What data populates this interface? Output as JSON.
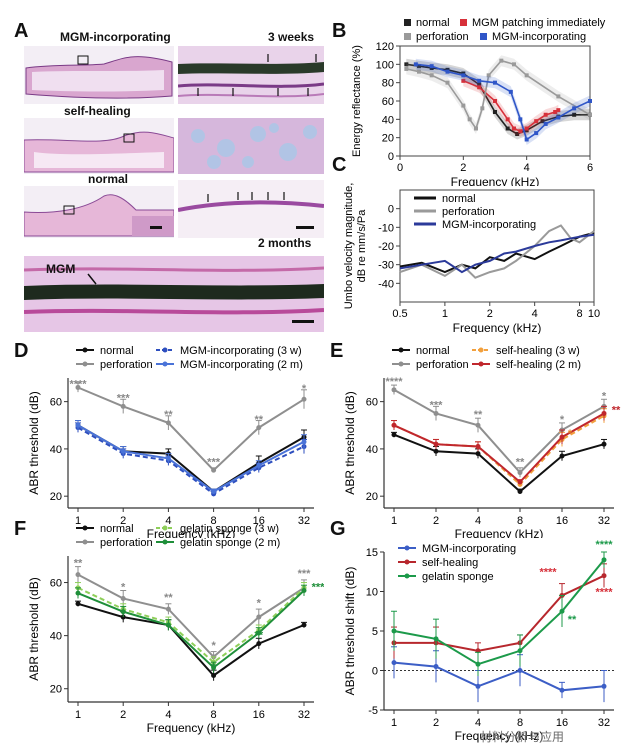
{
  "panels": {
    "A": {
      "letter": "A",
      "labels": {
        "mgm_incorporating": "MGM-incorporating",
        "self_healing": "self-healing",
        "normal": "normal",
        "three_weeks": "3 weeks",
        "two_months": "2 months",
        "mgm": "MGM"
      }
    },
    "B": {
      "letter": "B"
    },
    "C": {
      "letter": "C"
    },
    "D": {
      "letter": "D"
    },
    "E": {
      "letter": "E"
    },
    "F": {
      "letter": "F"
    },
    "G": {
      "letter": "G"
    }
  },
  "watermark": "材料分析与应用",
  "chart_data": [
    {
      "id": "B",
      "type": "line",
      "xlabel": "Frequency (kHz)",
      "ylabel": "Energy reflectance (%)",
      "xlim": [
        0,
        6
      ],
      "ylim": [
        0,
        120
      ],
      "xticks": [
        0,
        2,
        4,
        6
      ],
      "yticks": [
        0,
        20,
        40,
        60,
        80,
        100,
        120
      ],
      "legend": [
        "normal",
        "MGM patching immediately",
        "perforation",
        "MGM-incorporating"
      ],
      "colors": [
        "#222222",
        "#d7303a",
        "#9a9a9a",
        "#2f56c8"
      ],
      "series": [
        {
          "name": "normal",
          "x": [
            0.2,
            0.6,
            1.0,
            1.5,
            2.0,
            2.5,
            3.0,
            3.4,
            3.7,
            4.0,
            4.5,
            5.0,
            5.5,
            6.0
          ],
          "y": [
            100,
            98,
            96,
            94,
            90,
            78,
            48,
            30,
            24,
            28,
            38,
            43,
            45,
            45
          ]
        },
        {
          "name": "MGM patching immediately",
          "x": [
            2.0,
            2.5,
            3.0,
            3.4,
            3.6,
            3.8,
            4.0,
            4.3,
            4.6,
            4.9,
            5.0
          ],
          "y": [
            82,
            75,
            60,
            40,
            30,
            27,
            30,
            38,
            45,
            48,
            50
          ]
        },
        {
          "name": "perforation",
          "x": [
            0.2,
            0.6,
            1.0,
            1.5,
            2.0,
            2.2,
            2.4,
            2.6,
            2.8,
            3.2,
            3.6,
            4.0,
            5.0,
            6.0
          ],
          "y": [
            95,
            92,
            88,
            80,
            55,
            40,
            30,
            52,
            88,
            104,
            100,
            88,
            65,
            45
          ]
        },
        {
          "name": "MGM-incorporating",
          "x": [
            0.5,
            1.0,
            1.5,
            2.0,
            2.5,
            3.0,
            3.5,
            3.8,
            4.0,
            4.3,
            4.6,
            5.0,
            5.5,
            6.0
          ],
          "y": [
            100,
            98,
            92,
            88,
            82,
            80,
            70,
            40,
            18,
            25,
            35,
            42,
            52,
            60
          ]
        }
      ]
    },
    {
      "id": "C",
      "type": "line",
      "xlabel": "Frequency (kHz)",
      "ylabel": "Umbo velocity magnitude, dB re mm/s/Pa",
      "xscale": "log",
      "xlim": [
        0.5,
        10
      ],
      "ylim": [
        -50,
        10
      ],
      "xticks": [
        0.5,
        1,
        2,
        4,
        8,
        10
      ],
      "yticks": [
        -40,
        -30,
        -20,
        -10,
        0
      ],
      "legend": [
        "normal",
        "perforation",
        "MGM-incorporating"
      ],
      "colors": [
        "#111111",
        "#9a9a9a",
        "#2b3a9a"
      ],
      "series": [
        {
          "name": "normal",
          "x": [
            0.5,
            0.7,
            1.0,
            1.3,
            1.6,
            2.0,
            2.5,
            3.0,
            4.0,
            5.0,
            6.0,
            8.0,
            10.0
          ],
          "y": [
            -31,
            -29,
            -34,
            -30,
            -32,
            -26,
            -28,
            -24,
            -27,
            -23,
            -20,
            -15,
            -13
          ]
        },
        {
          "name": "perforation",
          "x": [
            0.5,
            0.7,
            1.0,
            1.3,
            1.6,
            2.0,
            2.5,
            3.0,
            4.0,
            5.0,
            6.0,
            7.0,
            8.0,
            10.0
          ],
          "y": [
            -34,
            -30,
            -36,
            -30,
            -37,
            -34,
            -32,
            -28,
            -20,
            -12,
            -9,
            -16,
            -18,
            -12
          ]
        },
        {
          "name": "MGM-incorporating",
          "x": [
            0.5,
            0.7,
            1.0,
            1.3,
            1.6,
            2.0,
            2.5,
            3.0,
            4.0,
            5.0,
            6.0,
            8.0,
            10.0
          ],
          "y": [
            -32,
            -30,
            -28,
            -34,
            -30,
            -28,
            -24,
            -23,
            -20,
            -18,
            -17,
            -15,
            -14
          ]
        }
      ]
    },
    {
      "id": "D",
      "type": "line",
      "xlabel": "Frequency (kHz)",
      "ylabel": "ABR threshold (dB)",
      "categories": [
        "1",
        "2",
        "4",
        "8",
        "16",
        "32"
      ],
      "ylim": [
        15,
        70
      ],
      "yticks": [
        20,
        40,
        60
      ],
      "series": [
        {
          "name": "normal",
          "values": [
            50,
            39,
            38,
            22,
            34,
            45
          ],
          "err": [
            2,
            2,
            2,
            1,
            3,
            3
          ],
          "color": "#111111",
          "dash": false
        },
        {
          "name": "perforation",
          "values": [
            66,
            58,
            51,
            31,
            49,
            61
          ],
          "err": [
            2,
            3,
            3,
            1,
            3,
            4
          ],
          "color": "#8f8f8f",
          "dash": false
        },
        {
          "name": "MGM-incorporating (3 w)",
          "values": [
            49,
            38,
            35,
            21,
            32,
            41
          ],
          "err": [
            2,
            2,
            2,
            1,
            2,
            3
          ],
          "color": "#2e4fbf",
          "dash": true
        },
        {
          "name": "MGM-incorporating (2 m)",
          "values": [
            50,
            39,
            36,
            22,
            33,
            43
          ],
          "err": [
            2,
            2,
            2,
            1,
            2,
            3
          ],
          "color": "#4a73d8",
          "dash": false
        }
      ],
      "annotations": [
        {
          "cat": 0,
          "y": 66,
          "text": "****",
          "color": "#888888"
        },
        {
          "cat": 1,
          "y": 60,
          "text": "***",
          "color": "#888888"
        },
        {
          "cat": 2,
          "y": 53,
          "text": "**",
          "color": "#888888"
        },
        {
          "cat": 3,
          "y": 33,
          "text": "***",
          "color": "#888888"
        },
        {
          "cat": 4,
          "y": 51,
          "text": "**",
          "color": "#888888"
        },
        {
          "cat": 5,
          "y": 64,
          "text": "*",
          "color": "#888888"
        }
      ]
    },
    {
      "id": "E",
      "type": "line",
      "xlabel": "Frequency (kHz)",
      "ylabel": "ABR threshold (dB)",
      "categories": [
        "1",
        "2",
        "4",
        "8",
        "16",
        "32"
      ],
      "ylim": [
        15,
        70
      ],
      "yticks": [
        20,
        40,
        60
      ],
      "series": [
        {
          "name": "normal",
          "values": [
            46,
            39,
            38,
            22,
            37,
            42
          ],
          "err": [
            1,
            2,
            2,
            1,
            2,
            2
          ],
          "color": "#111111",
          "dash": false
        },
        {
          "name": "perforation",
          "values": [
            65,
            55,
            50,
            30,
            48,
            58
          ],
          "err": [
            2,
            3,
            3,
            2,
            3,
            3
          ],
          "color": "#8f8f8f",
          "dash": false
        },
        {
          "name": "self-healing (3 w)",
          "values": [
            50,
            42,
            41,
            25,
            44,
            54
          ],
          "err": [
            2,
            2,
            2,
            1,
            3,
            3
          ],
          "color": "#f2a03d",
          "dash": true
        },
        {
          "name": "self-healing (2 m)",
          "values": [
            50,
            42,
            41,
            26,
            45,
            55
          ],
          "err": [
            2,
            2,
            2,
            1,
            3,
            3
          ],
          "color": "#c0272d",
          "dash": false
        }
      ],
      "annotations": [
        {
          "cat": 0,
          "y": 67,
          "text": "****",
          "color": "#888888"
        },
        {
          "cat": 1,
          "y": 57,
          "text": "***",
          "color": "#888888"
        },
        {
          "cat": 2,
          "y": 53,
          "text": "**",
          "color": "#888888"
        },
        {
          "cat": 3,
          "y": 33,
          "text": "**",
          "color": "#888888"
        },
        {
          "cat": 4,
          "y": 51,
          "text": "*",
          "color": "#888888"
        },
        {
          "cat": 4,
          "y": 45,
          "text": "*",
          "color": "#e07b20",
          "dx": 8
        },
        {
          "cat": 5,
          "y": 61,
          "text": "*",
          "color": "#888888"
        },
        {
          "cat": 5,
          "y": 55,
          "text": "**",
          "color": "#c0272d",
          "dx": 12
        }
      ]
    },
    {
      "id": "F",
      "type": "line",
      "xlabel": "Frequency (kHz)",
      "ylabel": "ABR threshold (dB)",
      "categories": [
        "1",
        "2",
        "4",
        "8",
        "16",
        "32"
      ],
      "ylim": [
        15,
        70
      ],
      "yticks": [
        20,
        40,
        60
      ],
      "series": [
        {
          "name": "normal",
          "values": [
            52,
            47,
            44,
            25,
            37,
            44
          ],
          "err": [
            1,
            2,
            2,
            2,
            2,
            1
          ],
          "color": "#111111",
          "dash": false
        },
        {
          "name": "perforation",
          "values": [
            63,
            54,
            50,
            32,
            47,
            58
          ],
          "err": [
            3,
            3,
            2,
            2,
            3,
            3
          ],
          "color": "#8f8f8f",
          "dash": false
        },
        {
          "name": "gelatin sponge (3 w)",
          "values": [
            58,
            50,
            45,
            30,
            42,
            58
          ],
          "err": [
            2,
            2,
            2,
            2,
            2,
            2
          ],
          "color": "#8fcf5a",
          "dash": true
        },
        {
          "name": "gelatin sponge (2 m)",
          "values": [
            56,
            49,
            44,
            28,
            41,
            57
          ],
          "err": [
            2,
            2,
            2,
            2,
            2,
            2
          ],
          "color": "#1f8f3a",
          "dash": false
        }
      ],
      "annotations": [
        {
          "cat": 0,
          "y": 66,
          "text": "**",
          "color": "#888888"
        },
        {
          "cat": 1,
          "y": 57,
          "text": "*",
          "color": "#888888"
        },
        {
          "cat": 2,
          "y": 53,
          "text": "**",
          "color": "#888888"
        },
        {
          "cat": 3,
          "y": 35,
          "text": "*",
          "color": "#888888"
        },
        {
          "cat": 3,
          "y": 27,
          "text": "*",
          "color": "#1f8f3a",
          "dy": 0
        },
        {
          "cat": 4,
          "y": 51,
          "text": "*",
          "color": "#888888"
        },
        {
          "cat": 4,
          "y": 39,
          "text": "**",
          "color": "#1f8f3a"
        },
        {
          "cat": 5,
          "y": 62,
          "text": "***",
          "color": "#888888"
        },
        {
          "cat": 5,
          "y": 57,
          "text": "***",
          "color": "#1f8f3a",
          "dx": 14
        }
      ]
    },
    {
      "id": "G",
      "type": "line",
      "xlabel": "Frequency (kHz)",
      "ylabel": "ABR threshold shift (dB)",
      "categories": [
        "1",
        "2",
        "4",
        "8",
        "16",
        "32"
      ],
      "ylim": [
        -5,
        15
      ],
      "yticks": [
        -5,
        0,
        5,
        10,
        15
      ],
      "zero_line": true,
      "series": [
        {
          "name": "MGM-incorporating",
          "values": [
            1,
            0.5,
            -2,
            0,
            -2.5,
            -2
          ],
          "err": [
            2,
            2,
            2,
            2,
            1,
            2
          ],
          "color": "#3c5ec6",
          "dash": false
        },
        {
          "name": "self-healing",
          "values": [
            3.5,
            3.5,
            2.5,
            3.5,
            9.5,
            12
          ],
          "err": [
            2,
            2,
            1,
            1,
            1.5,
            1.5
          ],
          "color": "#b7272d",
          "dash": false
        },
        {
          "name": "gelatin sponge",
          "values": [
            5,
            4,
            0.8,
            2.5,
            7.5,
            14
          ],
          "err": [
            2.5,
            2.5,
            1.5,
            2,
            2,
            1
          ],
          "color": "#1c9a4a",
          "dash": false
        }
      ],
      "annotations": [
        {
          "cat": 4,
          "y": 12,
          "text": "****",
          "color": "#d7303a",
          "dx": -14
        },
        {
          "cat": 4,
          "y": 6,
          "text": "**",
          "color": "#1c9a4a",
          "dx": 10
        },
        {
          "cat": 5,
          "y": 15.5,
          "text": "****",
          "color": "#1c9a4a"
        },
        {
          "cat": 5,
          "y": 9.5,
          "text": "****",
          "color": "#d7303a"
        }
      ]
    }
  ]
}
